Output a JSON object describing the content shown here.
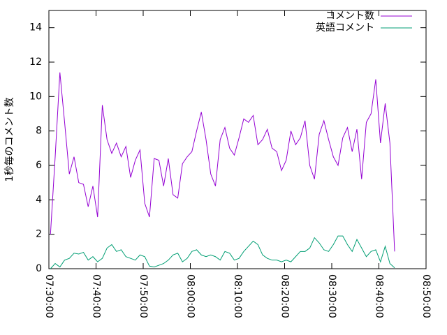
{
  "chart_data": {
    "type": "line",
    "y_label": "1秒毎のコメント数",
    "x": [
      "07:30:20",
      "07:31:20",
      "07:32:20",
      "07:33:20",
      "07:34:20",
      "07:35:20",
      "07:36:20",
      "07:37:20",
      "07:38:20",
      "07:39:20",
      "07:40:20",
      "07:41:20",
      "07:42:20",
      "07:43:20",
      "07:44:20",
      "07:45:20",
      "07:46:20",
      "07:47:20",
      "07:48:20",
      "07:49:20",
      "07:50:20",
      "07:51:20",
      "07:52:20",
      "07:53:20",
      "07:54:20",
      "07:55:20",
      "07:56:20",
      "07:57:20",
      "07:58:20",
      "07:59:20",
      "08:00:20",
      "08:01:20",
      "08:02:20",
      "08:03:20",
      "08:04:20",
      "08:05:20",
      "08:06:20",
      "08:07:20",
      "08:08:20",
      "08:09:20",
      "08:10:20",
      "08:11:20",
      "08:12:20",
      "08:13:20",
      "08:14:20",
      "08:15:20",
      "08:16:20",
      "08:17:20",
      "08:18:20",
      "08:19:20",
      "08:20:20",
      "08:21:20",
      "08:22:20",
      "08:23:20",
      "08:24:20",
      "08:25:20",
      "08:26:20",
      "08:27:20",
      "08:28:20",
      "08:29:20",
      "08:30:20",
      "08:31:20",
      "08:32:20",
      "08:33:20",
      "08:34:20",
      "08:35:20",
      "08:36:20",
      "08:37:20",
      "08:38:20",
      "08:39:20",
      "08:40:20",
      "08:41:20",
      "08:42:20",
      "08:43:20"
    ],
    "series": [
      {
        "name": "コメント数",
        "color": "#9400d3",
        "values": [
          2.0,
          6.5,
          11.4,
          8.5,
          5.5,
          6.5,
          5.0,
          4.9,
          3.6,
          4.8,
          3.0,
          9.5,
          7.5,
          6.7,
          7.3,
          6.5,
          7.1,
          5.3,
          6.3,
          6.9,
          3.8,
          3.0,
          6.4,
          6.3,
          4.8,
          6.4,
          4.3,
          4.1,
          6.1,
          6.5,
          6.8,
          8.0,
          9.1,
          7.5,
          5.5,
          4.8,
          7.5,
          8.2,
          7.0,
          6.6,
          7.6,
          8.7,
          8.5,
          8.9,
          7.2,
          7.5,
          8.1,
          7.0,
          6.8,
          5.7,
          6.3,
          8.0,
          7.2,
          7.6,
          8.6,
          6.0,
          5.2,
          7.8,
          8.6,
          7.5,
          6.5,
          6.0,
          7.6,
          8.2,
          6.8,
          8.1,
          5.2,
          8.5,
          9.0,
          11.0,
          7.3,
          9.6,
          7.3,
          1.0
        ]
      },
      {
        "name": "英語コメント",
        "color": "#009e73",
        "values": [
          0,
          0.3,
          0.1,
          0.5,
          0.6,
          0.9,
          0.85,
          0.95,
          0.5,
          0.7,
          0.4,
          0.6,
          1.2,
          1.4,
          1.0,
          1.1,
          0.7,
          0.6,
          0.5,
          0.8,
          0.7,
          0.15,
          0.1,
          0.2,
          0.3,
          0.5,
          0.8,
          0.9,
          0.4,
          0.6,
          1.0,
          1.1,
          0.8,
          0.7,
          0.8,
          0.7,
          0.5,
          1.0,
          0.9,
          0.5,
          0.6,
          1.0,
          1.3,
          1.6,
          1.4,
          0.8,
          0.6,
          0.5,
          0.5,
          0.4,
          0.5,
          0.4,
          0.7,
          1.0,
          1.0,
          1.2,
          1.8,
          1.5,
          1.1,
          1.0,
          1.4,
          1.9,
          1.9,
          1.4,
          1.0,
          1.7,
          1.2,
          0.7,
          1.0,
          1.1,
          0.4,
          1.3,
          0.3,
          0.05
        ]
      }
    ],
    "xlim": [
      "07:30:00",
      "08:50:00"
    ],
    "xticks": [
      "07:30:00",
      "07:40:00",
      "07:50:00",
      "08:00:00",
      "08:10:00",
      "08:20:00",
      "08:30:00",
      "08:40:00",
      "08:50:00"
    ],
    "ylim": [
      0,
      15
    ],
    "yticks": [
      0,
      2,
      4,
      6,
      8,
      10,
      12,
      14
    ],
    "grid": false,
    "legend": "top-right"
  }
}
